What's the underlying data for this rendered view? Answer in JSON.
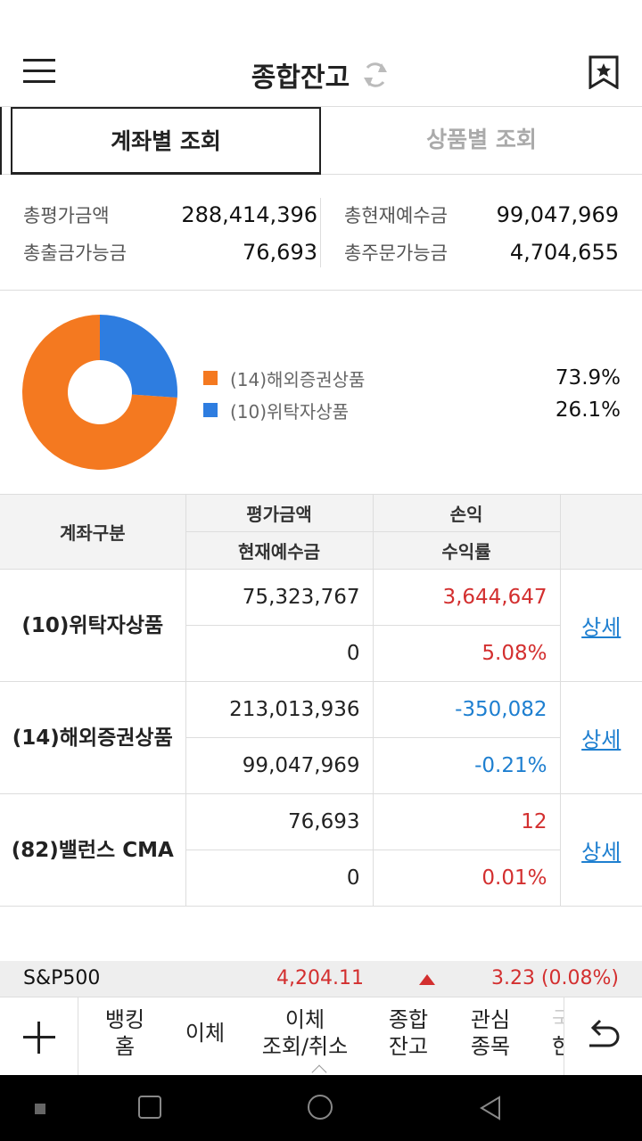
{
  "header": {
    "title": "종합잔고"
  },
  "tabs": [
    {
      "label": "계좌별 조회",
      "active": true
    },
    {
      "label": "상품별 조회",
      "active": false
    }
  ],
  "summary": {
    "left": [
      {
        "label": "총평가금액",
        "value": "288,414,396"
      },
      {
        "label": "총출금가능금",
        "value": "76,693"
      }
    ],
    "right": [
      {
        "label": "총현재예수금",
        "value": "99,047,969"
      },
      {
        "label": "총주문가능금",
        "value": "4,704,655"
      }
    ]
  },
  "chart_data": {
    "type": "pie",
    "categories": [
      "(14)해외증권상품",
      "(10)위탁자상품"
    ],
    "values": [
      73.9,
      26.1
    ],
    "colors": [
      "#f47920",
      "#2e7de0"
    ],
    "labels_text": [
      "73.9%",
      "26.1%"
    ]
  },
  "table": {
    "headers": {
      "account": "계좌구분",
      "eval_amount": "평가금액",
      "profit": "손익",
      "deposit": "현재예수금",
      "return_rate": "수익률"
    },
    "rows": [
      {
        "name": "(10)위탁자상품",
        "eval_amount": "75,323,767",
        "profit": "3,644,647",
        "deposit": "0",
        "return_rate": "5.08%",
        "sign": "up",
        "detail": "상세"
      },
      {
        "name": "(14)해외증권상품",
        "eval_amount": "213,013,936",
        "profit": "-350,082",
        "deposit": "99,047,969",
        "return_rate": "-0.21%",
        "sign": "down",
        "detail": "상세"
      },
      {
        "name": "(82)밸런스 CMA",
        "eval_amount": "76,693",
        "profit": "12",
        "deposit": "0",
        "return_rate": "0.01%",
        "sign": "up",
        "detail": "상세"
      }
    ]
  },
  "ticker": {
    "name": "S&P500",
    "price": "4,204.11",
    "change": "3.23 (0.08%)",
    "direction": "up"
  },
  "bottom_nav": {
    "items": [
      {
        "line1": "뱅킹",
        "line2": "홈"
      },
      {
        "line1": "이체",
        "line2": ""
      },
      {
        "line1": "이체",
        "line2": "조회/취소"
      },
      {
        "line1": "종합",
        "line2": "잔고"
      },
      {
        "line1": "관심",
        "line2": "종목"
      },
      {
        "line1": "국",
        "line2": "한"
      }
    ]
  },
  "colors": {
    "up": "#d32f2f",
    "down": "#1e7fd0",
    "link": "#1e7fd0"
  }
}
